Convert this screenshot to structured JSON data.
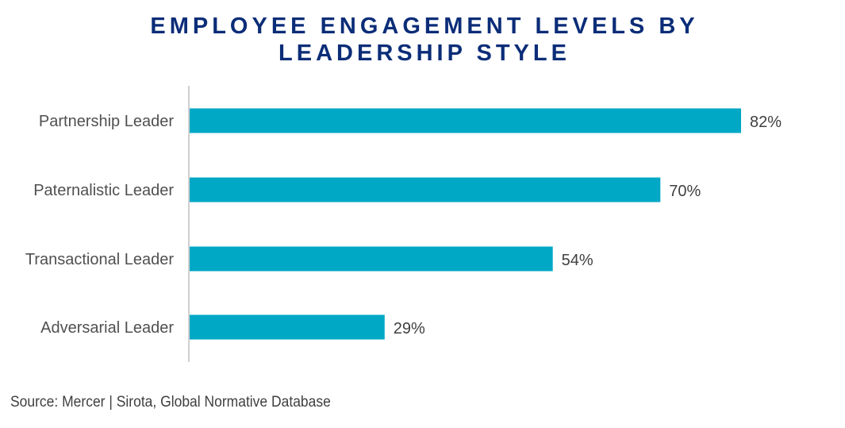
{
  "chart_data": {
    "type": "bar",
    "orientation": "horizontal",
    "title_lines": [
      "EMPLOYEE ENGAGEMENT LEVELS BY",
      "LEADERSHIP STYLE"
    ],
    "categories": [
      "Partnership Leader",
      "Paternalistic Leader",
      "Transactional Leader",
      "Adversarial Leader"
    ],
    "values": [
      82,
      70,
      54,
      29
    ],
    "data_labels": [
      "82%",
      "70%",
      "54%",
      "29%"
    ],
    "xlim": [
      0,
      100
    ],
    "grid": false,
    "bar_color": "#00a8c6",
    "title_color": "#0b2d78"
  },
  "source": "Source: Mercer | Sirota, Global Normative Database"
}
